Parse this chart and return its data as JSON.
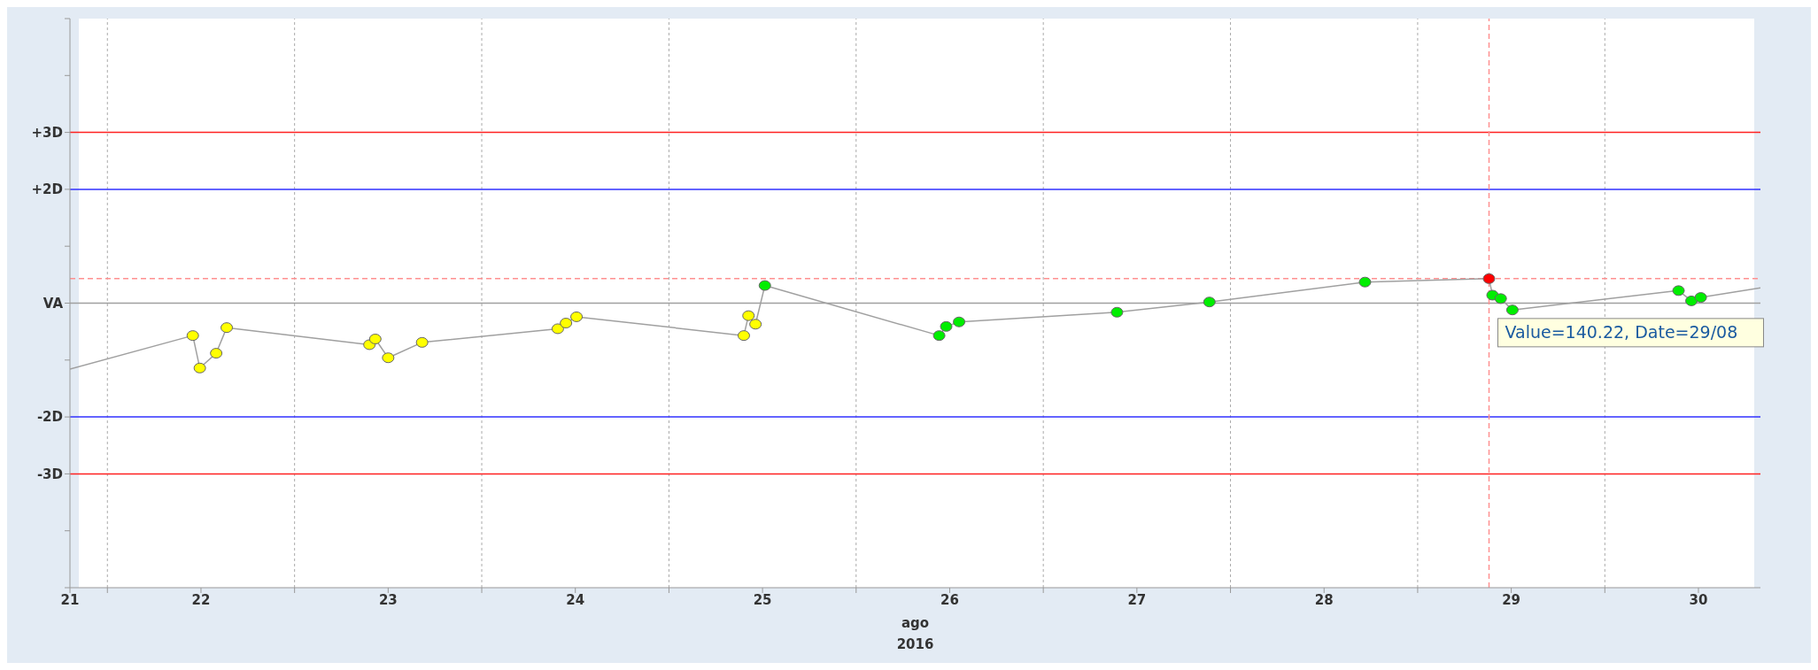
{
  "chart_data": {
    "type": "line",
    "xlabel": "ago 2016",
    "x": [
      "2016-08-21T19:12",
      "2016-08-22T10:57",
      "2016-08-22T11:51",
      "2016-08-22T13:57",
      "2016-08-22T15:18",
      "2016-08-23T09:36",
      "2016-08-23T10:21",
      "2016-08-23T12:00",
      "2016-08-23T16:21",
      "2016-08-24T09:45",
      "2016-08-24T10:48",
      "2016-08-24T12:09",
      "2016-08-25T09:36",
      "2016-08-25T10:12",
      "2016-08-25T11:06",
      "2016-08-25T12:18",
      "2016-08-26T10:39",
      "2016-08-26T11:33",
      "2016-08-26T13:12",
      "2016-08-27T09:27",
      "2016-08-27T21:18",
      "2016-08-28T17:15",
      "2016-08-29T09:09",
      "2016-08-29T09:36",
      "2016-08-29T10:39",
      "2016-08-29T12:09",
      "2016-08-30T09:27",
      "2016-08-30T11:06",
      "2016-08-30T12:18",
      "2016-08-30T19:57"
    ],
    "series": [
      {
        "color": "#a0a0a0",
        "values": [
          -1.16,
          -0.57,
          -1.14,
          -0.88,
          -0.43,
          -0.73,
          -0.63,
          -0.96,
          -0.69,
          -0.45,
          -0.35,
          -0.24,
          -0.57,
          -0.22,
          -0.37,
          0.31,
          -0.57,
          -0.41,
          -0.33,
          -0.16,
          0.02,
          0.37,
          0.43,
          0.14,
          0.08,
          -0.12,
          0.22,
          0.04,
          0.1,
          0.27
        ],
        "colors": [
          null,
          "#ffff00",
          "#ffff00",
          "#ffff00",
          "#ffff00",
          "#ffff00",
          "#ffff00",
          "#ffff00",
          "#ffff00",
          "#ffff00",
          "#ffff00",
          "#ffff00",
          "#ffff00",
          "#ffff00",
          "#ffff00",
          "#00ee00",
          "#00ee00",
          "#00ee00",
          "#00ee00",
          "#00ee00",
          "#00ee00",
          "#00ee00",
          "#ff0000",
          "#00ee00",
          "#00ee00",
          "#00ee00",
          "#00ee00",
          "#00ee00",
          "#00ee00",
          null
        ]
      }
    ],
    "marker": "circle",
    "ylim": [
      -5,
      5
    ],
    "yticks": [
      {
        "value": -5,
        "label": null
      },
      {
        "value": -4,
        "label": null
      },
      {
        "value": -3,
        "label": "-3D"
      },
      {
        "value": -2,
        "label": "-2D"
      },
      {
        "value": -1,
        "label": null
      },
      {
        "value": 0,
        "label": "VA"
      },
      {
        "value": 1,
        "label": null
      },
      {
        "value": 2,
        "label": "+2D"
      },
      {
        "value": 3,
        "label": "+3D"
      },
      {
        "value": 4,
        "label": null
      },
      {
        "value": 5,
        "label": null
      }
    ],
    "xlim": [
      "2016-08-21T19:12",
      "2016-08-30T19:57"
    ],
    "xticks": [
      {
        "value": "2016-08-21T19:12",
        "label": "21"
      },
      {
        "value": "2016-08-22T00:00",
        "label": null
      },
      {
        "value": "2016-08-22T12:00",
        "label": "22"
      },
      {
        "value": "2016-08-23T00:00",
        "label": null
      },
      {
        "value": "2016-08-23T12:00",
        "label": "23"
      },
      {
        "value": "2016-08-24T00:00",
        "label": null
      },
      {
        "value": "2016-08-24T12:00",
        "label": "24"
      },
      {
        "value": "2016-08-25T00:00",
        "label": null
      },
      {
        "value": "2016-08-25T12:00",
        "label": "25"
      },
      {
        "value": "2016-08-26T00:00",
        "label": null
      },
      {
        "value": "2016-08-26T12:00",
        "label": "26"
      },
      {
        "value": "2016-08-27T00:00",
        "label": null
      },
      {
        "value": "2016-08-27T12:00",
        "label": "27"
      },
      {
        "value": "2016-08-28T00:00",
        "label": null
      },
      {
        "value": "2016-08-28T12:00",
        "label": "28"
      },
      {
        "value": "2016-08-29T00:00",
        "label": null
      },
      {
        "value": "2016-08-29T12:00",
        "label": "29"
      },
      {
        "value": "2016-08-30T00:00",
        "label": null
      },
      {
        "value": "2016-08-30T12:00",
        "label": "30"
      }
    ],
    "grid": "x",
    "ref_lines": [
      {
        "axis": "y",
        "value": 3,
        "color": "#ff2020"
      },
      {
        "axis": "y",
        "value": 2,
        "color": "#3030ff"
      },
      {
        "axis": "y",
        "value": 0,
        "color": "#a0a0a0"
      },
      {
        "axis": "y",
        "value": -2,
        "color": "#3030ff"
      },
      {
        "axis": "y",
        "value": -3,
        "color": "#ff2020"
      },
      {
        "axis": "y",
        "value": 0.43,
        "color": "#ff9090",
        "line_style": "dashed"
      },
      {
        "axis": "x",
        "value": "2016-08-29T09:09",
        "color": "#ff9090",
        "line_style": "dashed"
      }
    ],
    "annotations": [
      {
        "text": "Value=140.22, Date=29/08",
        "x": "2016-08-29T09:09",
        "y": 0.43
      }
    ]
  }
}
